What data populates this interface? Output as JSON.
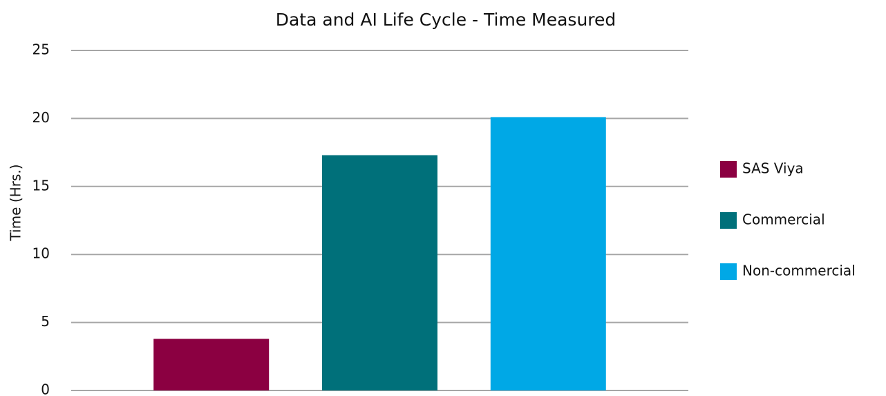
{
  "chart_data": {
    "type": "bar",
    "title": "Data and AI Life Cycle - Time Measured",
    "y_label": "Time (Hrs.)",
    "categories": [
      null
    ],
    "series": [
      {
        "name": "SAS Viya",
        "color": "#8b0041",
        "values": [
          3.8
        ]
      },
      {
        "name": "Commercial",
        "color": "#00707a",
        "values": [
          17.3
        ]
      },
      {
        "name": "Non-commercial",
        "color": "#00a8e6",
        "values": [
          20.1
        ]
      }
    ],
    "ylim": [
      0,
      25
    ],
    "yticks": [
      0,
      5,
      10,
      15,
      20,
      25
    ],
    "grid": true,
    "legend": "right"
  }
}
